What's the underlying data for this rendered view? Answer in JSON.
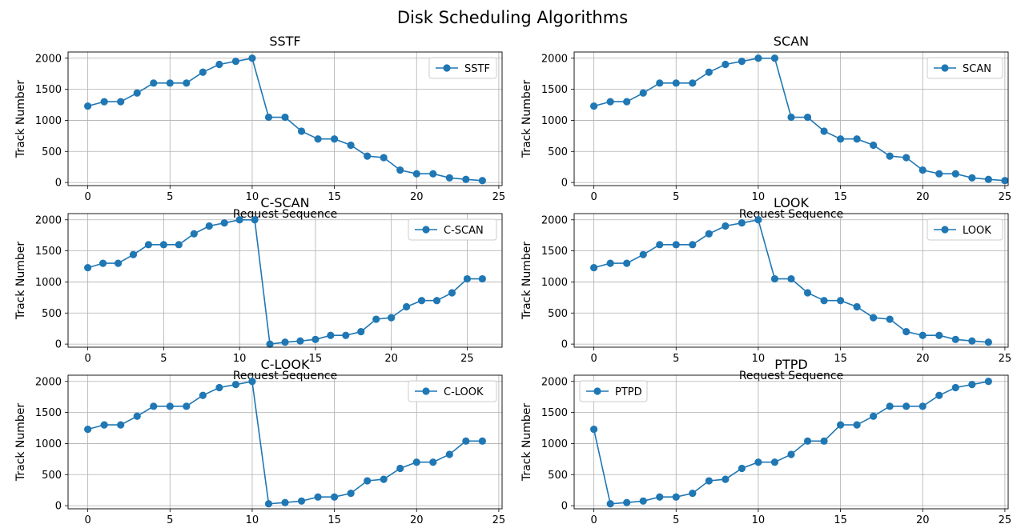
{
  "figure": {
    "title": "Disk Scheduling Algorithms"
  },
  "style": {
    "line_color": "#1f77b4",
    "grid_color": "#b0b0b0",
    "legend_border": "#cccccc"
  },
  "chart_data": [
    {
      "type": "line",
      "title": "SSTF",
      "xlabel": "Request Sequence",
      "ylabel": "Track Number",
      "xlim": [
        -1.2,
        25.2
      ],
      "ylim": [
        -50,
        2100
      ],
      "xticks": [
        0,
        5,
        10,
        15,
        20,
        25
      ],
      "yticks": [
        0,
        500,
        1000,
        1500,
        2000
      ],
      "grid": true,
      "legend_position": "upper right",
      "series": [
        {
          "name": "SSTF",
          "x": [
            0,
            1,
            2,
            3,
            4,
            5,
            6,
            7,
            8,
            9,
            10,
            11,
            12,
            13,
            14,
            15,
            16,
            17,
            18,
            19,
            20,
            21,
            22,
            23,
            24
          ],
          "values": [
            1230,
            1300,
            1300,
            1440,
            1600,
            1600,
            1600,
            1775,
            1900,
            1950,
            2000,
            1050,
            1050,
            825,
            700,
            700,
            600,
            425,
            400,
            200,
            140,
            140,
            75,
            50,
            30
          ]
        }
      ]
    },
    {
      "type": "line",
      "title": "SCAN",
      "xlabel": "Request Sequence",
      "ylabel": "Track Number",
      "xlim": [
        -1.2,
        25.2
      ],
      "ylim": [
        -50,
        2100
      ],
      "xticks": [
        0,
        5,
        10,
        15,
        20,
        25
      ],
      "yticks": [
        0,
        500,
        1000,
        1500,
        2000
      ],
      "grid": true,
      "legend_position": "upper right",
      "series": [
        {
          "name": "SCAN",
          "x": [
            0,
            1,
            2,
            3,
            4,
            5,
            6,
            7,
            8,
            9,
            10,
            11,
            12,
            13,
            14,
            15,
            16,
            17,
            18,
            19,
            20,
            21,
            22,
            23,
            24,
            25
          ],
          "values": [
            1230,
            1300,
            1300,
            1440,
            1600,
            1600,
            1600,
            1775,
            1900,
            1950,
            2000,
            2000,
            1050,
            1050,
            825,
            700,
            700,
            600,
            425,
            400,
            200,
            140,
            140,
            75,
            50,
            30
          ]
        }
      ]
    },
    {
      "type": "line",
      "title": "C-SCAN",
      "xlabel": "Request Sequence",
      "ylabel": "Track Number",
      "xlim": [
        -1.3,
        27.3
      ],
      "ylim": [
        -50,
        2100
      ],
      "xticks": [
        0,
        5,
        10,
        15,
        20,
        25
      ],
      "yticks": [
        0,
        500,
        1000,
        1500,
        2000
      ],
      "grid": true,
      "legend_position": "upper right",
      "series": [
        {
          "name": "C-SCAN",
          "x": [
            0,
            1,
            2,
            3,
            4,
            5,
            6,
            7,
            8,
            9,
            10,
            11,
            12,
            13,
            14,
            15,
            16,
            17,
            18,
            19,
            20,
            21,
            22,
            23,
            24,
            25,
            26
          ],
          "values": [
            1230,
            1300,
            1300,
            1440,
            1600,
            1600,
            1600,
            1775,
            1900,
            1950,
            2000,
            2000,
            0,
            30,
            50,
            75,
            140,
            140,
            200,
            400,
            425,
            600,
            700,
            700,
            825,
            1050,
            1050
          ]
        }
      ]
    },
    {
      "type": "line",
      "title": "LOOK",
      "xlabel": "Request Sequence",
      "ylabel": "Track Number",
      "xlim": [
        -1.2,
        25.2
      ],
      "ylim": [
        -50,
        2100
      ],
      "xticks": [
        0,
        5,
        10,
        15,
        20,
        25
      ],
      "yticks": [
        0,
        500,
        1000,
        1500,
        2000
      ],
      "grid": true,
      "legend_position": "upper right",
      "series": [
        {
          "name": "LOOK",
          "x": [
            0,
            1,
            2,
            3,
            4,
            5,
            6,
            7,
            8,
            9,
            10,
            11,
            12,
            13,
            14,
            15,
            16,
            17,
            18,
            19,
            20,
            21,
            22,
            23,
            24
          ],
          "values": [
            1230,
            1300,
            1300,
            1440,
            1600,
            1600,
            1600,
            1775,
            1900,
            1950,
            2000,
            1050,
            1050,
            825,
            700,
            700,
            600,
            425,
            400,
            200,
            140,
            140,
            75,
            50,
            30
          ]
        }
      ]
    },
    {
      "type": "line",
      "title": "C-LOOK",
      "xlabel": "",
      "ylabel": "Track Number",
      "xlim": [
        -1.2,
        25.2
      ],
      "ylim": [
        -50,
        2100
      ],
      "xticks": [
        0,
        5,
        10,
        15,
        20,
        25
      ],
      "yticks": [
        0,
        500,
        1000,
        1500,
        2000
      ],
      "grid": true,
      "legend_position": "upper right",
      "series": [
        {
          "name": "C-LOOK",
          "x": [
            0,
            1,
            2,
            3,
            4,
            5,
            6,
            7,
            8,
            9,
            10,
            11,
            12,
            13,
            14,
            15,
            16,
            17,
            18,
            19,
            20,
            21,
            22,
            23,
            24
          ],
          "values": [
            1230,
            1300,
            1300,
            1440,
            1600,
            1600,
            1600,
            1775,
            1900,
            1950,
            2000,
            30,
            50,
            75,
            140,
            140,
            200,
            400,
            425,
            600,
            700,
            700,
            825,
            1040,
            1040
          ]
        }
      ]
    },
    {
      "type": "line",
      "title": "PTPD",
      "xlabel": "",
      "ylabel": "Track Number",
      "xlim": [
        -1.2,
        25.2
      ],
      "ylim": [
        -50,
        2100
      ],
      "xticks": [
        0,
        5,
        10,
        15,
        20,
        25
      ],
      "yticks": [
        0,
        500,
        1000,
        1500,
        2000
      ],
      "grid": true,
      "legend_position": "upper left",
      "series": [
        {
          "name": "PTPD",
          "x": [
            0,
            1,
            2,
            3,
            4,
            5,
            6,
            7,
            8,
            9,
            10,
            11,
            12,
            13,
            14,
            15,
            16,
            17,
            18,
            19,
            20,
            21,
            22,
            23,
            24
          ],
          "values": [
            1230,
            30,
            50,
            75,
            140,
            140,
            200,
            400,
            425,
            600,
            700,
            700,
            825,
            1040,
            1040,
            1300,
            1300,
            1440,
            1600,
            1600,
            1600,
            1775,
            1900,
            1950,
            2000
          ]
        }
      ]
    }
  ]
}
